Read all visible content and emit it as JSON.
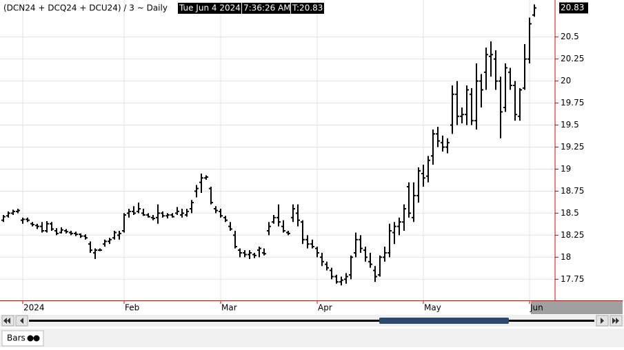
{
  "chart_data": {
    "type": "ohlc",
    "title": "(DCN24 + DCQ24 + DCU24) / 3 ~ Daily",
    "header_date": "Tue Jun 4 2024",
    "header_time": "7:36:26 AM",
    "header_last": "T:20.83",
    "color": "#000000",
    "grid": true,
    "ylim": [
      17.51,
      20.92
    ],
    "yticks": [
      17.75,
      18,
      18.25,
      18.5,
      18.75,
      19,
      19.25,
      19.5,
      19.75,
      20,
      20.25,
      20.5
    ],
    "categories": [
      null,
      null,
      null,
      null,
      "2024",
      null,
      null,
      null,
      null,
      null,
      null,
      null,
      null,
      null,
      null,
      null,
      null,
      null,
      null,
      null,
      null,
      null,
      null,
      null,
      null,
      "Feb",
      null,
      null,
      null,
      null,
      null,
      null,
      null,
      null,
      null,
      null,
      null,
      null,
      null,
      null,
      null,
      null,
      null,
      null,
      null,
      "Mar",
      null,
      null,
      null,
      null,
      null,
      null,
      null,
      null,
      null,
      null,
      null,
      null,
      null,
      null,
      null,
      null,
      null,
      null,
      null,
      "Apr",
      null,
      null,
      null,
      null,
      null,
      null,
      null,
      null,
      null,
      null,
      null,
      null,
      null,
      null,
      null,
      null,
      null,
      null,
      null,
      null,
      null,
      "May",
      null,
      null,
      null,
      null,
      null,
      null,
      null,
      null,
      null,
      null,
      null,
      null,
      null,
      null,
      null,
      null,
      null,
      null,
      null,
      null,
      null,
      "Jun",
      null
    ],
    "open": [
      18.42,
      18.47,
      18.5,
      18.52,
      18.42,
      18.43,
      18.38,
      18.36,
      18.35,
      18.3,
      18.38,
      18.3,
      18.28,
      18.3,
      18.28,
      18.27,
      18.26,
      18.24,
      18.15,
      18.05,
      18.08,
      18.15,
      18.18,
      18.22,
      18.25,
      18.3,
      18.5,
      18.52,
      18.52,
      18.5,
      18.48,
      18.45,
      18.45,
      18.5,
      18.47,
      18.48,
      18.5,
      18.48,
      18.48,
      18.55,
      18.75,
      18.85,
      18.9,
      18.78,
      18.55,
      18.52,
      18.45,
      18.35,
      18.25,
      18.08,
      18.05,
      18.03,
      18.03,
      18.08,
      18.05,
      18.3,
      18.4,
      18.45,
      18.35,
      18.28,
      18.45,
      18.5,
      18.4,
      18.2,
      18.15,
      18.1,
      18,
      17.92,
      17.85,
      17.78,
      17.72,
      17.75,
      17.8,
      18.05,
      18.2,
      18.08,
      17.95,
      17.85,
      17.8,
      18,
      18.05,
      18.28,
      18.35,
      18.4,
      18.8,
      18.45,
      18.7,
      18.95,
      18.92,
      19.15,
      19.4,
      19.3,
      19.25,
      19.5,
      19.85,
      19.6,
      19.62,
      19.85,
      19.55,
      20,
      20.1,
      20.28,
      20.25,
      20,
      19.7,
      20.1,
      19.95,
      19.6,
      19.92,
      20.25,
      20.75
    ],
    "high": [
      18.48,
      18.52,
      18.54,
      18.55,
      18.45,
      18.45,
      18.4,
      18.38,
      18.4,
      18.41,
      18.4,
      18.33,
      18.34,
      18.32,
      18.3,
      18.29,
      18.27,
      18.26,
      18.18,
      18.1,
      18.1,
      18.2,
      18.22,
      18.3,
      18.3,
      18.5,
      18.55,
      18.58,
      18.62,
      18.55,
      18.5,
      18.48,
      18.6,
      18.52,
      18.5,
      18.5,
      18.57,
      18.55,
      18.55,
      18.65,
      18.82,
      18.95,
      18.93,
      18.8,
      18.58,
      18.55,
      18.47,
      18.4,
      18.3,
      18.1,
      18.08,
      18.08,
      18.05,
      18.12,
      18.1,
      18.4,
      18.48,
      18.6,
      18.42,
      18.3,
      18.6,
      18.6,
      18.42,
      18.25,
      18.2,
      18.12,
      18.05,
      17.95,
      17.88,
      17.8,
      17.78,
      17.82,
      18.02,
      18.28,
      18.25,
      18.12,
      18.05,
      17.9,
      18.02,
      18.12,
      18.38,
      18.4,
      18.45,
      18.6,
      18.85,
      18.85,
      19.02,
      19.05,
      19.15,
      19.45,
      19.48,
      19.38,
      19.35,
      19.95,
      20,
      19.7,
      19.95,
      19.92,
      20.2,
      20.08,
      20.38,
      20.45,
      20.35,
      20.05,
      20.2,
      20.15,
      20,
      19.92,
      20.42,
      20.72,
      20.87
    ],
    "low": [
      18.4,
      18.45,
      18.48,
      18.5,
      18.38,
      18.4,
      18.35,
      18.32,
      18.28,
      18.28,
      18.3,
      18.25,
      18.27,
      18.27,
      18.25,
      18.24,
      18.22,
      18.2,
      18.05,
      17.98,
      18.07,
      18.12,
      18.15,
      18.2,
      18.2,
      18.28,
      18.45,
      18.48,
      18.5,
      18.47,
      18.45,
      18.42,
      18.38,
      18.45,
      18.44,
      18.45,
      18.48,
      18.45,
      18.46,
      18.5,
      18.68,
      18.73,
      18.88,
      18.6,
      18.5,
      18.45,
      18.4,
      18.3,
      18.1,
      18,
      18,
      17.98,
      17.99,
      18,
      18.02,
      18.25,
      18.38,
      18.35,
      18.28,
      18.25,
      18.4,
      18.35,
      18.15,
      18.1,
      18.1,
      18,
      17.9,
      17.85,
      17.75,
      17.7,
      17.68,
      17.7,
      17.75,
      18,
      18.05,
      17.95,
      17.88,
      17.72,
      17.78,
      17.95,
      18,
      18.15,
      18.25,
      18.3,
      18.45,
      18.4,
      18.62,
      18.8,
      18.85,
      19.05,
      19.25,
      19.2,
      19.18,
      19.4,
      19.5,
      19.52,
      19.5,
      19.5,
      19.45,
      19.7,
      19.9,
      20.05,
      19.9,
      19.35,
      19.65,
      19.9,
      19.55,
      19.55,
      19.9,
      20.2,
      20.73
    ],
    "close": [
      18.46,
      18.5,
      18.52,
      18.53,
      18.43,
      18.42,
      18.37,
      18.35,
      18.3,
      18.38,
      18.32,
      18.27,
      18.31,
      18.29,
      18.27,
      18.26,
      18.24,
      18.22,
      18.08,
      18.08,
      18.08,
      18.18,
      18.2,
      18.28,
      18.27,
      18.48,
      18.52,
      18.5,
      18.55,
      18.48,
      18.46,
      18.44,
      18.5,
      18.47,
      18.48,
      18.46,
      18.52,
      18.5,
      18.52,
      18.62,
      18.78,
      18.9,
      18.91,
      18.62,
      18.53,
      18.47,
      18.42,
      18.32,
      18.12,
      18.05,
      18.03,
      18.05,
      18.02,
      18.1,
      18.04,
      18.35,
      18.45,
      18.4,
      18.3,
      18.27,
      18.55,
      18.42,
      18.2,
      18.15,
      18.12,
      18.05,
      17.95,
      17.88,
      17.78,
      17.72,
      17.74,
      17.78,
      18,
      18.2,
      18.1,
      18,
      17.92,
      17.78,
      18,
      18.05,
      18.3,
      18.35,
      18.4,
      18.55,
      18.5,
      18.7,
      18.98,
      18.9,
      19.1,
      19.4,
      19.32,
      19.25,
      19.3,
      19.85,
      19.6,
      19.62,
      19.9,
      19.55,
      20,
      19.9,
      20.3,
      20.3,
      20,
      19.65,
      20.15,
      19.95,
      19.62,
      19.9,
      20.25,
      20.65,
      20.83
    ]
  },
  "ui": {
    "tab": "Bars"
  }
}
